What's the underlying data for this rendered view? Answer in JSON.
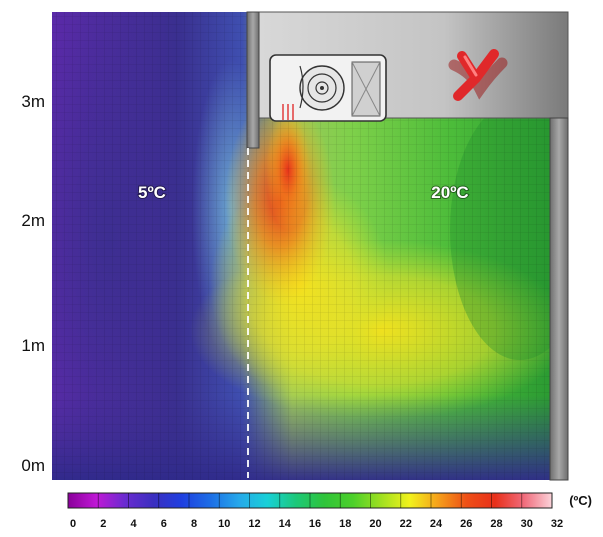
{
  "y_axis": {
    "labels": [
      "3m",
      "2m",
      "1m",
      "0m"
    ]
  },
  "zones": {
    "left_temp": "5ºC",
    "right_temp": "20ºC"
  },
  "colorbar": {
    "ticks": [
      "0",
      "2",
      "4",
      "6",
      "8",
      "10",
      "12",
      "14",
      "16",
      "18",
      "20",
      "22",
      "24",
      "26",
      "28",
      "30",
      "32"
    ],
    "unit": "(ºC)",
    "stops": [
      "#8a009a",
      "#c018d6",
      "#6a2bd0",
      "#3b2fc0",
      "#1f3fe0",
      "#1d6ee6",
      "#26a8ea",
      "#18d0d8",
      "#1cc87a",
      "#2fc43a",
      "#4cd02a",
      "#a0e020",
      "#f2f21c",
      "#f5a01a",
      "#ee4f16",
      "#e8301a",
      "#f06a7a",
      "#fbd3da"
    ]
  },
  "colors": {
    "cold": "#3a2f8f",
    "warm": "#e8401a",
    "comfort": "#2fae2a",
    "wall": "#8f8f8f",
    "no_mark": "#e0282a"
  },
  "icons": {
    "heater": "fan-heater-icon",
    "no_mark": "red-x-icon"
  }
}
